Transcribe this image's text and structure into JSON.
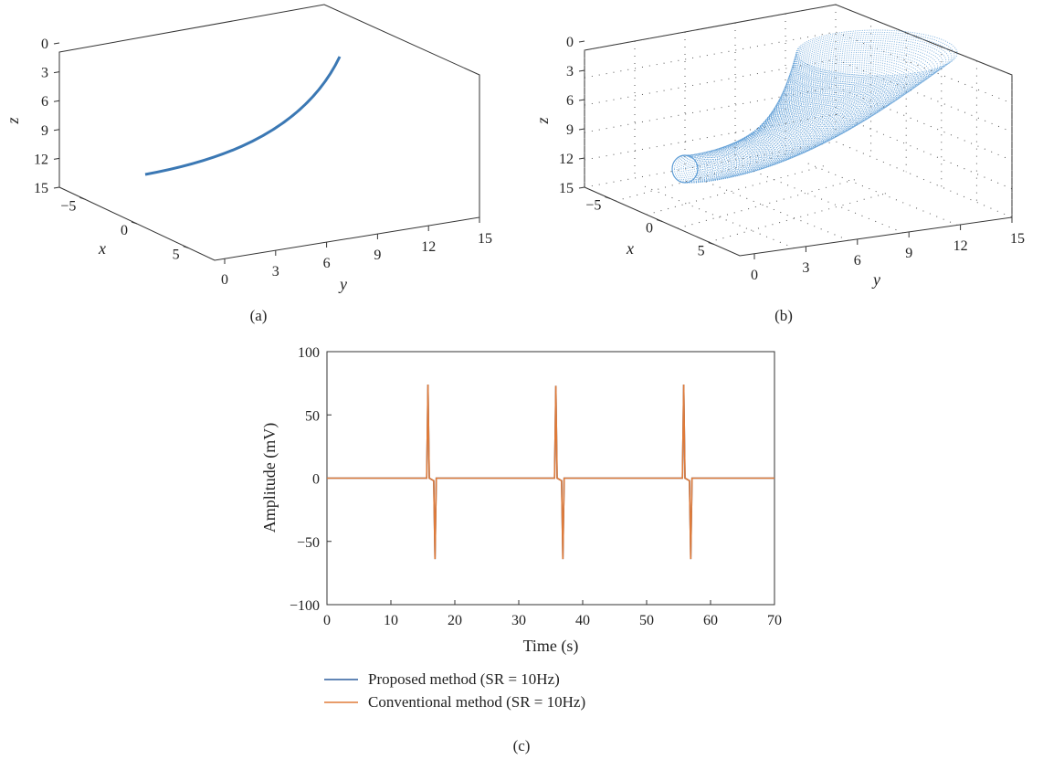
{
  "chart_data": [
    {
      "type": "line",
      "panel": "a",
      "caption": "(a)",
      "projection": "3d",
      "xlabel": "x",
      "ylabel": "y",
      "zlabel": "z",
      "x_ticks": [
        "−5",
        "0",
        "5"
      ],
      "y_ticks": [
        "0",
        "3",
        "6",
        "9",
        "12",
        "15"
      ],
      "z_ticks": [
        "0",
        "3",
        "6",
        "9",
        "12",
        "15"
      ],
      "grid": false,
      "color": "#3b78b4"
    },
    {
      "type": "scatter",
      "panel": "b",
      "caption": "(b)",
      "projection": "3d",
      "xlabel": "x",
      "ylabel": "y",
      "zlabel": "z",
      "x_ticks": [
        "−5",
        "0",
        "5"
      ],
      "y_ticks": [
        "0",
        "3",
        "6",
        "9",
        "12",
        "15"
      ],
      "z_ticks": [
        "0",
        "3",
        "6",
        "9",
        "12",
        "15"
      ],
      "grid": true,
      "color": "#5b9bd5"
    },
    {
      "type": "line",
      "panel": "c",
      "caption": "(c)",
      "xlabel": "Time (s)",
      "ylabel": "Amplitude (mV)",
      "xlim": [
        0,
        70
      ],
      "ylim": [
        -100,
        100
      ],
      "x_ticks": [
        0,
        10,
        20,
        30,
        40,
        50,
        60,
        70
      ],
      "y_ticks": [
        100,
        50,
        0,
        -50,
        -100
      ],
      "y_tick_labels": [
        "100",
        "50",
        "0",
        "−50",
        "−100"
      ],
      "legend_position": "below",
      "series": [
        {
          "name": "Proposed method (SR = 10Hz)",
          "color": "#2f5f9e",
          "x": [
            0,
            15.6,
            15.8,
            16.0,
            16.7,
            16.9,
            17.1,
            35.6,
            35.8,
            36.0,
            36.7,
            36.9,
            37.1,
            55.6,
            55.8,
            56.0,
            56.7,
            56.9,
            57.1,
            70
          ],
          "y": [
            0,
            0,
            74,
            0,
            -2,
            -64,
            0,
            0,
            73,
            0,
            -2,
            -64,
            0,
            0,
            74,
            0,
            -2,
            -64,
            0,
            0
          ]
        },
        {
          "name": "Conventional method (SR = 10Hz)",
          "color": "#e07b39",
          "x": [
            0,
            15.6,
            15.8,
            16.0,
            16.7,
            16.9,
            17.1,
            35.6,
            35.8,
            36.0,
            36.7,
            36.9,
            37.1,
            55.6,
            55.8,
            56.0,
            56.7,
            56.9,
            57.1,
            70
          ],
          "y": [
            0,
            0,
            74,
            0,
            -2,
            -64,
            0,
            0,
            73,
            0,
            -2,
            -64,
            0,
            0,
            74,
            0,
            -2,
            -64,
            0,
            0
          ]
        }
      ]
    }
  ]
}
